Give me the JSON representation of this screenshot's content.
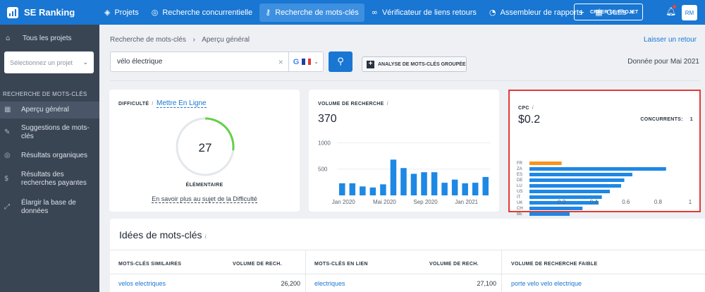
{
  "topbar": {
    "brand": "SE Ranking",
    "nav": [
      {
        "label": "Projets",
        "icon": "layers-icon",
        "active": false
      },
      {
        "label": "Recherche concurrentielle",
        "icon": "target-icon",
        "active": false
      },
      {
        "label": "Recherche de mots-clés",
        "icon": "key-icon",
        "active": true
      },
      {
        "label": "Vérificateur de liens retours",
        "icon": "link-icon",
        "active": false
      },
      {
        "label": "Assembleur de rapports",
        "icon": "pie-chart-icon",
        "active": false
      },
      {
        "label": "Outils",
        "icon": "grid-icon",
        "active": false
      }
    ],
    "create_label": "CRÉER LE PROJET",
    "avatar": "RM"
  },
  "sidebar": {
    "projects_label": "Tous les projets",
    "select_placeholder": "Sélectionnez un projet",
    "section_label": "RECHERCHE DE MOTS-CLÉS",
    "items": [
      {
        "label": "Aperçu général",
        "icon": "grid-icon",
        "active": true
      },
      {
        "label": "Suggestions de mots-clés",
        "icon": "pencil-icon",
        "active": false
      },
      {
        "label": "Résultats organiques",
        "icon": "target-icon",
        "active": false
      },
      {
        "label": "Résultats des recherches payantes",
        "icon": "dollar-icon",
        "active": false
      },
      {
        "label": "Élargir la base de données",
        "icon": "expand-icon",
        "active": false
      }
    ]
  },
  "breadcrumb": {
    "root": "Recherche de mots-clés",
    "current": "Aperçu général"
  },
  "feedback_label": "Laisser un retour",
  "search": {
    "value": "vélo électrique"
  },
  "group_button_label": "ANALYSE DE MOTS-CLÉS GROUPÉE",
  "data_for": "Donnée pour Mai 2021",
  "difficulty": {
    "title": "DIFFICULTÉ",
    "link": "Mettre En Ligne",
    "value": "27",
    "fraction": 0.27,
    "level": "ÉLÉMENTAIRE",
    "more": "En savoir plus au sujet de la Difficulté",
    "color": "#66d04a"
  },
  "volume": {
    "title": "VOLUME DE RECHERCHE",
    "value": "370",
    "color": "#1e88e5"
  },
  "cpc": {
    "title": "CPC",
    "value": "$0.2",
    "competitors_label": "CONCURRENTS:",
    "competitors_value": "1",
    "highlight_color": "#f7941d",
    "bar_color": "#1e88e5"
  },
  "chart_data": [
    {
      "type": "bar",
      "title": "VOLUME DE RECHERCHE",
      "x": [
        "2020-01",
        "2020-02",
        "2020-03",
        "2020-04",
        "2020-05",
        "2020-06",
        "2020-07",
        "2020-08",
        "2020-09",
        "2020-10",
        "2020-11",
        "2020-12",
        "2021-01",
        "2021-02",
        "2021-03"
      ],
      "values": [
        230,
        230,
        170,
        150,
        210,
        680,
        520,
        410,
        440,
        440,
        240,
        300,
        230,
        240,
        350
      ],
      "xticks": [
        "Jan 2020",
        "Mai 2020",
        "Sep 2020",
        "Jan 2021"
      ],
      "ylim": [
        0,
        1100
      ],
      "yticks": [
        500,
        1000
      ],
      "ylabel": "",
      "xlabel": ""
    },
    {
      "type": "bar",
      "orientation": "horizontal",
      "title": "CPC",
      "categories": [
        "FR",
        "ZA",
        "ES",
        "DE",
        "LU",
        "US",
        "IT",
        "UK",
        "CH",
        "BE"
      ],
      "values": [
        0.2,
        0.85,
        0.64,
        0.59,
        0.57,
        0.5,
        0.45,
        0.43,
        0.33,
        0.25
      ],
      "xticks": [
        "0.2",
        "0.4",
        "0.6",
        "0.8",
        "1"
      ],
      "xlim": [
        0,
        1
      ],
      "xlabel": "",
      "ylabel": ""
    }
  ],
  "ideas": {
    "title": "Idées de mots-clés",
    "columns": [
      {
        "header": "MOTS-CLÉS SIMILAIRES",
        "volume_header": "VOLUME DE RECH.",
        "keyword": "velos electriques",
        "volume": "26,200"
      },
      {
        "header": "MOTS-CLÉS EN LIEN",
        "volume_header": "VOLUME DE RECH.",
        "keyword": "electriques",
        "volume": "27,100"
      },
      {
        "header": "VOLUME DE RECHERCHE FAIBLE",
        "keyword": "porte velo velo electrique"
      }
    ]
  }
}
